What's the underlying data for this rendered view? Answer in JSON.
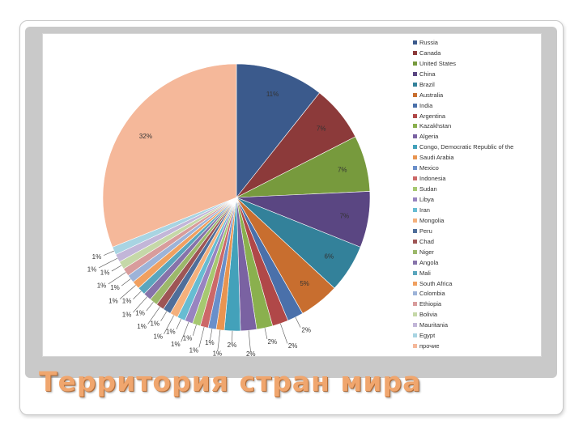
{
  "slide": {
    "title": "Территория стран мира"
  },
  "chart_data": {
    "type": "pie",
    "title": "",
    "legend_position": "right",
    "categories": [
      "Russia",
      "Canada",
      "United States",
      "China",
      "Brazil",
      "Australia",
      "India",
      "Argentina",
      "Kazakhstan",
      "Algeria",
      "Congo, Democratic Republic of the",
      "Saudi Arabia",
      "Mexico",
      "Indonesia",
      "Sudan",
      "Libya",
      "Iran",
      "Mongolia",
      "Peru",
      "Chad",
      "Niger",
      "Angola",
      "Mali",
      "South Africa",
      "Colombia",
      "Ethiopia",
      "Bolivia",
      "Mauritania",
      "Egypt",
      "прочие"
    ],
    "values": [
      11,
      7,
      7,
      7,
      6,
      5,
      2,
      2,
      2,
      2,
      2,
      1,
      1,
      1,
      1,
      1,
      1,
      1,
      1,
      1,
      1,
      1,
      1,
      1,
      1,
      1,
      1,
      1,
      1,
      32
    ],
    "labels": [
      "11%",
      "7%",
      "7%",
      "7%",
      "6%",
      "5%",
      "2%",
      "2%",
      "2%",
      "2%",
      "2%",
      "1%",
      "1%",
      "1%",
      "1%",
      "1%",
      "1%",
      "1%",
      "1%",
      "1%",
      "1%",
      "1%",
      "1%",
      "1%",
      "1%",
      "1%",
      "1%",
      "1%",
      "1%",
      "32%"
    ],
    "colors": [
      "#3b5a8c",
      "#8c3a3a",
      "#779a3d",
      "#5a4682",
      "#33819a",
      "#c86e2f",
      "#4a70aa",
      "#b04848",
      "#8ab04e",
      "#7a62a2",
      "#43a1ba",
      "#e89450",
      "#6a8fca",
      "#cc6868",
      "#a6c870",
      "#9884c0",
      "#67bcd2",
      "#f4b07c",
      "#4f6e9a",
      "#9e5555",
      "#9cb86a",
      "#8673aa",
      "#5aa6bd",
      "#f0a060",
      "#9db3d8",
      "#d89c9c",
      "#c5d8a8",
      "#c2b6d8",
      "#a8d4e2",
      "#f5b89a"
    ]
  }
}
